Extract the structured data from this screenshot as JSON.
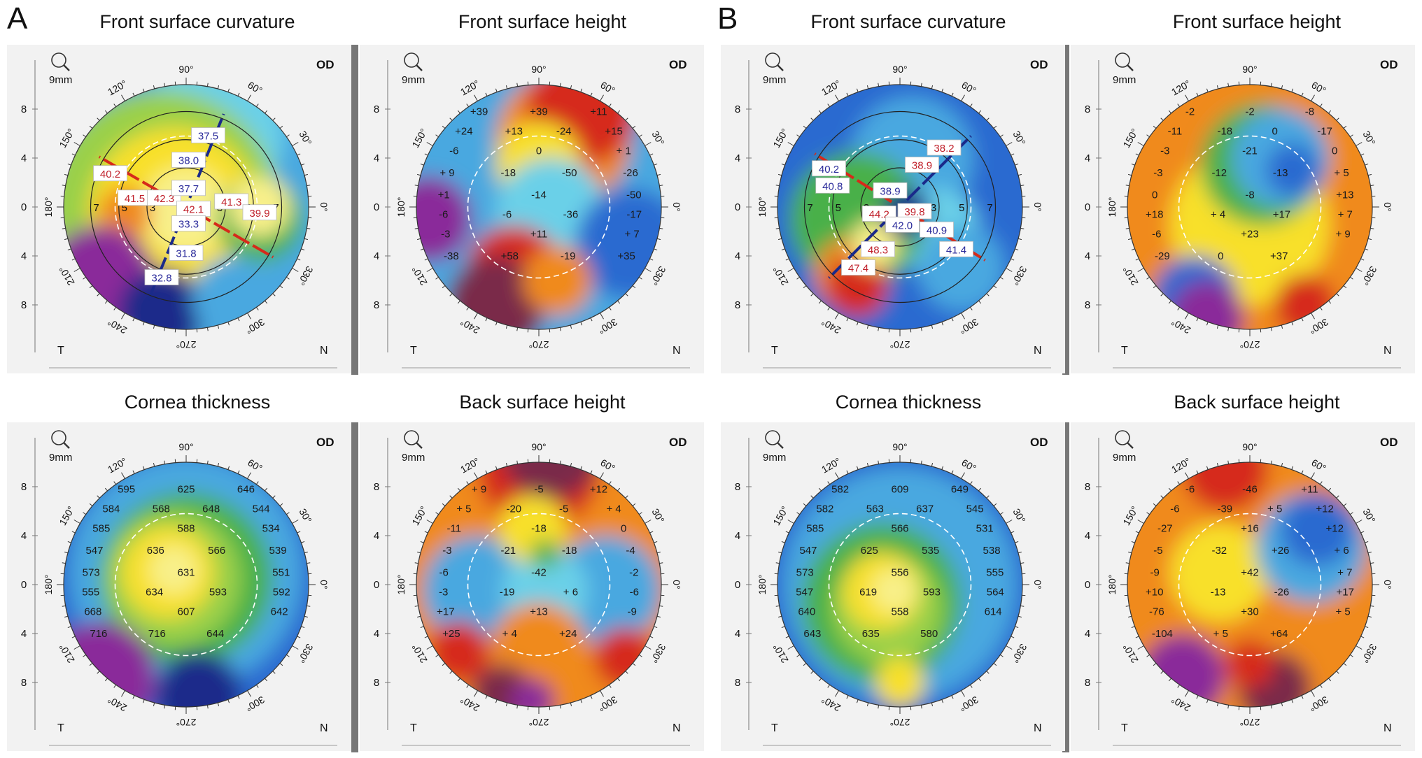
{
  "figure": {
    "letters": [
      "A",
      "B"
    ],
    "colors": {
      "purple": "#8a2a9a",
      "wine": "#7a2a4a",
      "red": "#d62a1a",
      "orange": "#f08a1a",
      "yellow": "#f8e02a",
      "lightyellow": "#f8f08a",
      "green": "#4ab04a",
      "lightgreen": "#9ad048",
      "cyan": "#6ad0e8",
      "lightblue": "#4aa8e0",
      "blue": "#2a6ad0",
      "darkblue": "#1a2a8a",
      "box_red_text": "#c0202a",
      "box_blue_text": "#2a2a9a"
    }
  },
  "panels": [
    {
      "id": "a-fsc",
      "title": "Front surface curvature",
      "type": "curvature",
      "magnifier": "9mm",
      "eye": "OD",
      "temporal": "T",
      "nasal": "N",
      "angles": [
        "90°",
        "60°",
        "30°",
        "0°",
        "330°",
        "300°",
        "270°",
        "240°",
        "210°",
        "180°",
        "150°",
        "120°"
      ],
      "ring_labels": [
        "3",
        "5",
        "7"
      ],
      "scale": [
        "8",
        "4",
        "0",
        "4",
        "8"
      ],
      "boxes": [
        {
          "v": "37.5",
          "c": "b"
        },
        {
          "v": "38.0",
          "c": "b"
        },
        {
          "v": "40.2",
          "c": "r"
        },
        {
          "v": "41.5",
          "c": "r"
        },
        {
          "v": "42.3",
          "c": "r"
        },
        {
          "v": "37.7",
          "c": "b"
        },
        {
          "v": "42.1",
          "c": "r"
        },
        {
          "v": "41.3",
          "c": "r"
        },
        {
          "v": "39.9",
          "c": "r"
        },
        {
          "v": "33.3",
          "c": "b"
        },
        {
          "v": "31.8",
          "c": "b"
        },
        {
          "v": "32.8",
          "c": "b"
        }
      ]
    },
    {
      "id": "a-fsh",
      "title": "Front surface height",
      "type": "values",
      "magnifier": "9mm",
      "eye": "OD",
      "temporal": "T",
      "nasal": "N",
      "angles": [
        "90°",
        "60°",
        "30°",
        "0°",
        "330°",
        "300°",
        "270°",
        "240°",
        "210°",
        "180°",
        "150°",
        "120°"
      ],
      "scale": [
        "8",
        "4",
        "0",
        "4",
        "8"
      ],
      "values": [
        "+39",
        "+39",
        "+11",
        "+24",
        "+13",
        "-24",
        "+15",
        "-6",
        "0",
        "+ 1",
        "+ 9",
        "-18",
        "-50",
        "-26",
        "+1",
        "-14",
        "-50",
        "-6",
        "-6",
        "-36",
        "-17",
        "-3",
        "+11",
        "+ 7",
        "-38",
        "+58",
        "-19",
        "+35"
      ]
    },
    {
      "id": "a-ct",
      "title": "Cornea thickness",
      "type": "values",
      "magnifier": "9mm",
      "eye": "OD",
      "temporal": "T",
      "nasal": "N",
      "angles": [
        "90°",
        "60°",
        "30°",
        "0°",
        "330°",
        "300°",
        "270°",
        "240°",
        "210°",
        "180°",
        "150°",
        "120°"
      ],
      "scale": [
        "8",
        "4",
        "0",
        "4",
        "8"
      ],
      "values": [
        "595",
        "625",
        "646",
        "584",
        "568",
        "648",
        "544",
        "585",
        "588",
        "534",
        "547",
        "636",
        "566",
        "539",
        "573",
        "631",
        "551",
        "555",
        "634",
        "593",
        "592",
        "668",
        "607",
        "642",
        "716",
        "716",
        "644"
      ]
    },
    {
      "id": "a-bsh",
      "title": "Back surface height",
      "type": "values",
      "magnifier": "9mm",
      "eye": "OD",
      "temporal": "T",
      "nasal": "N",
      "angles": [
        "90°",
        "60°",
        "30°",
        "0°",
        "330°",
        "300°",
        "270°",
        "240°",
        "210°",
        "180°",
        "150°",
        "120°"
      ],
      "scale": [
        "8",
        "4",
        "0",
        "4",
        "8"
      ],
      "values": [
        "+ 9",
        "-5",
        "+12",
        "+ 5",
        "-20",
        "-5",
        "+ 4",
        "-11",
        "-18",
        "0",
        "-3",
        "-21",
        "-18",
        "-4",
        "-6",
        "-42",
        "-2",
        "-3",
        "-19",
        "+ 6",
        "-6",
        "+17",
        "+13",
        "-9",
        "+25",
        "+ 4",
        "+24"
      ]
    },
    {
      "id": "b-fsc",
      "title": "Front surface curvature",
      "type": "curvature",
      "magnifier": "9mm",
      "eye": "OD",
      "temporal": "T",
      "nasal": "N",
      "angles": [
        "90°",
        "60°",
        "30°",
        "0°",
        "330°",
        "300°",
        "270°",
        "240°",
        "210°",
        "180°",
        "150°",
        "120°"
      ],
      "ring_labels": [
        "3",
        "5",
        "7"
      ],
      "scale": [
        "8",
        "4",
        "0",
        "4",
        "8"
      ],
      "boxes": [
        {
          "v": "38.2",
          "c": "r"
        },
        {
          "v": "38.9",
          "c": "r"
        },
        {
          "v": "40.2",
          "c": "b"
        },
        {
          "v": "40.8",
          "c": "b"
        },
        {
          "v": "38.9",
          "c": "b"
        },
        {
          "v": "39.8",
          "c": "r"
        },
        {
          "v": "44.2",
          "c": "r"
        },
        {
          "v": "42.0",
          "c": "b"
        },
        {
          "v": "40.9",
          "c": "b"
        },
        {
          "v": "41.4",
          "c": "b"
        },
        {
          "v": "48.3",
          "c": "r"
        },
        {
          "v": "47.4",
          "c": "r"
        }
      ]
    },
    {
      "id": "b-fsh",
      "title": "Front surface height",
      "type": "values",
      "magnifier": "9mm",
      "eye": "OD",
      "temporal": "T",
      "nasal": "N",
      "angles": [
        "90°",
        "60°",
        "30°",
        "0°",
        "330°",
        "300°",
        "270°",
        "240°",
        "210°",
        "180°",
        "150°",
        "120°"
      ],
      "scale": [
        "8",
        "4",
        "0",
        "4",
        "8"
      ],
      "values": [
        "-2",
        "-2",
        "-8",
        "-11",
        "-18",
        "0",
        "-17",
        "-3",
        "-21",
        "0",
        "-3",
        "-12",
        "-13",
        "+ 5",
        "0",
        "-8",
        "+13",
        "+18",
        "+ 4",
        "+17",
        "+ 7",
        "-6",
        "+23",
        "+ 9",
        "-29",
        "0",
        "+37"
      ]
    },
    {
      "id": "b-ct",
      "title": "Cornea thickness",
      "type": "values",
      "magnifier": "9mm",
      "eye": "OD",
      "temporal": "T",
      "nasal": "N",
      "angles": [
        "90°",
        "60°",
        "30°",
        "0°",
        "330°",
        "300°",
        "270°",
        "240°",
        "210°",
        "180°",
        "150°",
        "120°"
      ],
      "scale": [
        "8",
        "4",
        "0",
        "4",
        "8"
      ],
      "values": [
        "582",
        "609",
        "649",
        "582",
        "563",
        "637",
        "545",
        "585",
        "566",
        "531",
        "547",
        "625",
        "535",
        "538",
        "573",
        "556",
        "555",
        "547",
        "619",
        "593",
        "564",
        "640",
        "558",
        "614",
        "643",
        "635",
        "580"
      ]
    },
    {
      "id": "b-bsh",
      "title": "Back surface height",
      "type": "values",
      "magnifier": "9mm",
      "eye": "OD",
      "temporal": "T",
      "nasal": "N",
      "angles": [
        "90°",
        "60°",
        "30°",
        "0°",
        "330°",
        "300°",
        "270°",
        "240°",
        "210°",
        "180°",
        "150°",
        "120°"
      ],
      "scale": [
        "8",
        "4",
        "0",
        "4",
        "8"
      ],
      "values": [
        "-6",
        "-46",
        "+11",
        "-6",
        "-39",
        "+ 5",
        "+12",
        "-27",
        "+16",
        "+12",
        "-5",
        "-32",
        "+26",
        "+ 6",
        "-9",
        "+42",
        "+ 7",
        "+10",
        "-13",
        "-26",
        "+17",
        "-76",
        "+30",
        "+ 5",
        "-104",
        "+ 5",
        "+64"
      ]
    }
  ]
}
